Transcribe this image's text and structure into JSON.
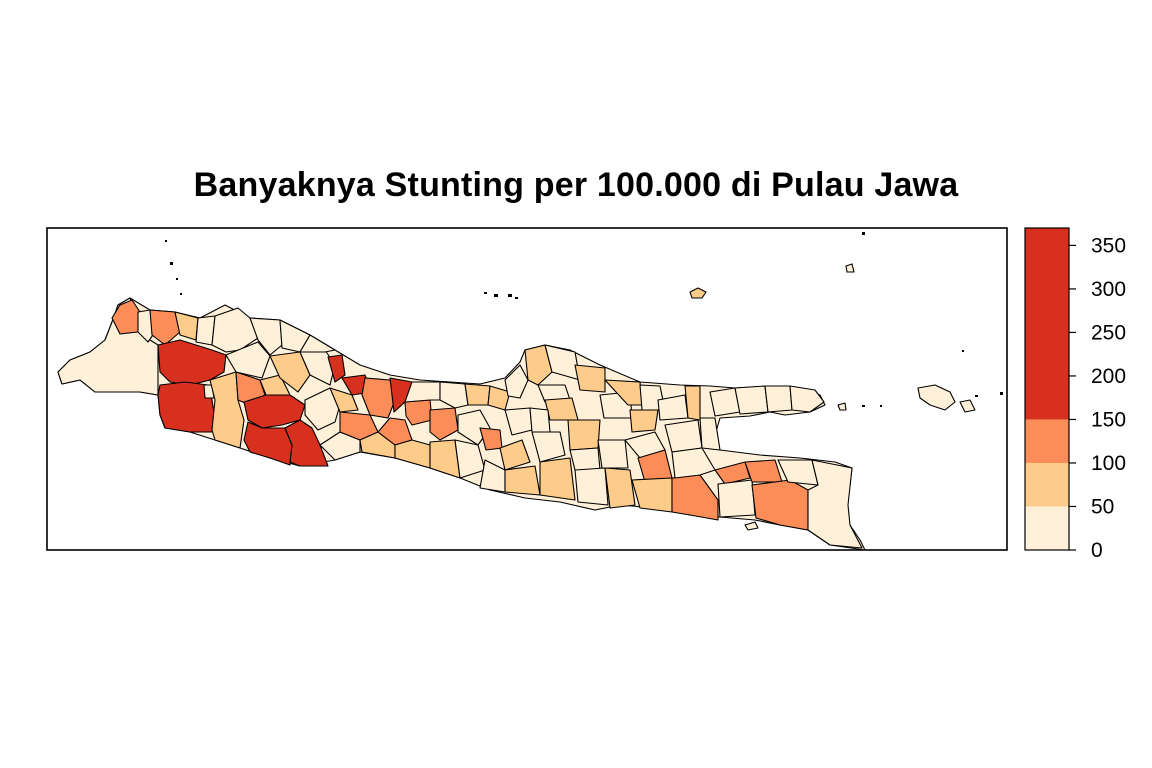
{
  "title": "Banyaknya Stunting per 100.000 di Pulau Jawa",
  "legend": {
    "ticks": [
      "0",
      "50",
      "100",
      "150",
      "200",
      "250",
      "300",
      "350"
    ],
    "max": 370,
    "bins": [
      {
        "from": 0,
        "to": 50,
        "color": "#fef0d9"
      },
      {
        "from": 50,
        "to": 100,
        "color": "#fdcc8a"
      },
      {
        "from": 100,
        "to": 150,
        "color": "#fc8d59"
      },
      {
        "from": 150,
        "to": 370,
        "color": "#d7301f"
      }
    ]
  }
}
